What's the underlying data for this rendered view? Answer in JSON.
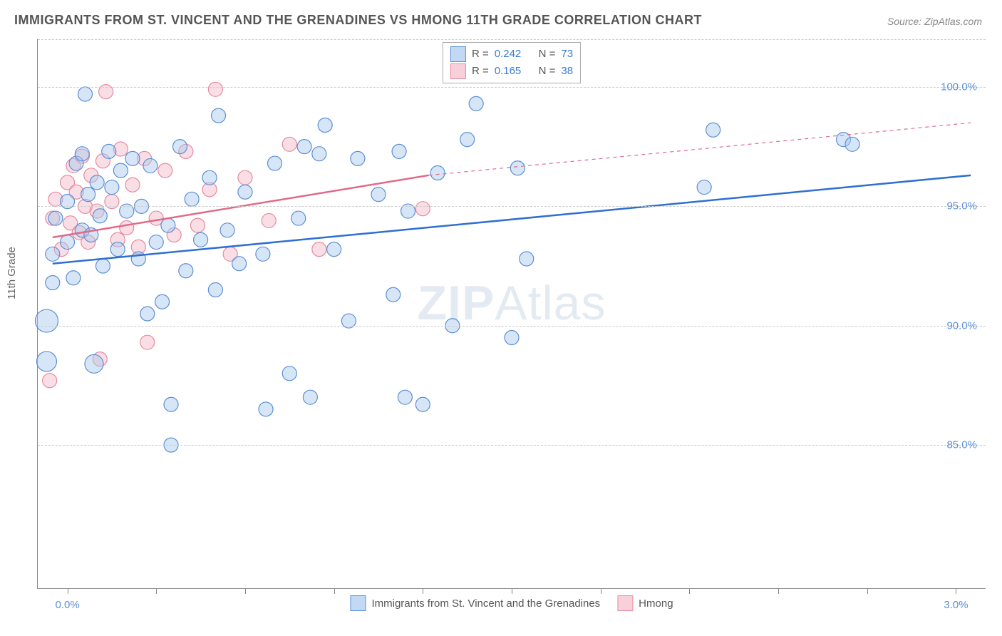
{
  "title": "IMMIGRANTS FROM ST. VINCENT AND THE GRENADINES VS HMONG 11TH GRADE CORRELATION CHART",
  "source": "Source: ZipAtlas.com",
  "y_axis_label": "11th Grade",
  "watermark_a": "ZIP",
  "watermark_b": "Atlas",
  "chart": {
    "type": "scatter",
    "xlim": [
      -0.1,
      3.1
    ],
    "ylim": [
      79.0,
      102.0
    ],
    "x_ticks": [
      0.0,
      0.3,
      0.6,
      0.9,
      1.2,
      1.5,
      1.8,
      2.1,
      2.4,
      2.7,
      3.0
    ],
    "x_tick_labels": {
      "0": "0.0%",
      "10": "3.0%"
    },
    "y_gridlines": [
      85.0,
      90.0,
      95.0,
      100.0,
      102.0
    ],
    "y_tick_labels": {
      "85": "85.0%",
      "90": "90.0%",
      "95": "95.0%",
      "100": "100.0%"
    },
    "background_color": "#ffffff",
    "grid_color": "#cccccc",
    "axis_color": "#888888",
    "marker_radius": 10,
    "marker_opacity": 0.45,
    "line_width": 2.5,
    "series": [
      {
        "name": "Immigrants from St. Vincent and the Grenadines",
        "color_fill": "#a6c8ec",
        "color_stroke": "#5b8fd6",
        "line_color": "#2e6fd1",
        "R": "0.242",
        "N": "73",
        "trend": {
          "x1": -0.05,
          "y1": 92.6,
          "x2": 3.05,
          "y2": 96.3
        },
        "points": [
          {
            "x": -0.07,
            "y": 90.2,
            "r": 16
          },
          {
            "x": -0.07,
            "y": 88.5,
            "r": 14
          },
          {
            "x": -0.05,
            "y": 93.0
          },
          {
            "x": -0.05,
            "y": 91.8
          },
          {
            "x": -0.04,
            "y": 94.5
          },
          {
            "x": 0.0,
            "y": 95.2
          },
          {
            "x": 0.0,
            "y": 93.5
          },
          {
            "x": 0.02,
            "y": 92.0
          },
          {
            "x": 0.03,
            "y": 96.8
          },
          {
            "x": 0.05,
            "y": 94.0
          },
          {
            "x": 0.05,
            "y": 97.2
          },
          {
            "x": 0.06,
            "y": 99.7
          },
          {
            "x": 0.07,
            "y": 95.5
          },
          {
            "x": 0.08,
            "y": 93.8
          },
          {
            "x": 0.09,
            "y": 88.4,
            "r": 13
          },
          {
            "x": 0.1,
            "y": 96.0
          },
          {
            "x": 0.11,
            "y": 94.6
          },
          {
            "x": 0.12,
            "y": 92.5
          },
          {
            "x": 0.14,
            "y": 97.3
          },
          {
            "x": 0.15,
            "y": 95.8
          },
          {
            "x": 0.17,
            "y": 93.2
          },
          {
            "x": 0.18,
            "y": 96.5
          },
          {
            "x": 0.2,
            "y": 94.8
          },
          {
            "x": 0.22,
            "y": 97.0
          },
          {
            "x": 0.24,
            "y": 92.8
          },
          {
            "x": 0.25,
            "y": 95.0
          },
          {
            "x": 0.27,
            "y": 90.5
          },
          {
            "x": 0.28,
            "y": 96.7
          },
          {
            "x": 0.3,
            "y": 93.5
          },
          {
            "x": 0.32,
            "y": 91.0
          },
          {
            "x": 0.34,
            "y": 94.2
          },
          {
            "x": 0.35,
            "y": 86.7
          },
          {
            "x": 0.35,
            "y": 85.0
          },
          {
            "x": 0.38,
            "y": 97.5
          },
          {
            "x": 0.4,
            "y": 92.3
          },
          {
            "x": 0.42,
            "y": 95.3
          },
          {
            "x": 0.45,
            "y": 93.6
          },
          {
            "x": 0.48,
            "y": 96.2
          },
          {
            "x": 0.5,
            "y": 91.5
          },
          {
            "x": 0.51,
            "y": 98.8
          },
          {
            "x": 0.54,
            "y": 94.0
          },
          {
            "x": 0.58,
            "y": 92.6
          },
          {
            "x": 0.6,
            "y": 95.6
          },
          {
            "x": 0.66,
            "y": 93.0
          },
          {
            "x": 0.67,
            "y": 86.5
          },
          {
            "x": 0.7,
            "y": 96.8
          },
          {
            "x": 0.75,
            "y": 88.0
          },
          {
            "x": 0.78,
            "y": 94.5
          },
          {
            "x": 0.8,
            "y": 97.5
          },
          {
            "x": 0.82,
            "y": 87.0
          },
          {
            "x": 0.85,
            "y": 97.2
          },
          {
            "x": 0.87,
            "y": 98.4
          },
          {
            "x": 0.9,
            "y": 93.2
          },
          {
            "x": 0.95,
            "y": 90.2
          },
          {
            "x": 0.98,
            "y": 97.0
          },
          {
            "x": 1.05,
            "y": 95.5
          },
          {
            "x": 1.1,
            "y": 91.3
          },
          {
            "x": 1.12,
            "y": 97.3
          },
          {
            "x": 1.14,
            "y": 87.0
          },
          {
            "x": 1.15,
            "y": 94.8
          },
          {
            "x": 1.2,
            "y": 86.7
          },
          {
            "x": 1.25,
            "y": 96.4
          },
          {
            "x": 1.3,
            "y": 90.0
          },
          {
            "x": 1.35,
            "y": 97.8
          },
          {
            "x": 1.38,
            "y": 99.3
          },
          {
            "x": 1.5,
            "y": 89.5
          },
          {
            "x": 1.52,
            "y": 96.6
          },
          {
            "x": 1.55,
            "y": 92.8
          },
          {
            "x": 2.15,
            "y": 95.8
          },
          {
            "x": 2.18,
            "y": 98.2
          },
          {
            "x": 2.62,
            "y": 97.8
          },
          {
            "x": 2.65,
            "y": 97.6
          }
        ]
      },
      {
        "name": "Hmong",
        "color_fill": "#f2b8c6",
        "color_stroke": "#e68aa0",
        "line_color": "#e06a88",
        "R": "0.165",
        "N": "38",
        "trend": {
          "x1": -0.05,
          "y1": 93.7,
          "x2": 1.22,
          "y2": 96.3
        },
        "trend_ext": {
          "x1": 1.22,
          "y1": 96.3,
          "x2": 3.05,
          "y2": 98.5
        },
        "points": [
          {
            "x": -0.06,
            "y": 87.7
          },
          {
            "x": -0.05,
            "y": 94.5
          },
          {
            "x": -0.04,
            "y": 95.3
          },
          {
            "x": -0.02,
            "y": 93.2
          },
          {
            "x": 0.0,
            "y": 96.0
          },
          {
            "x": 0.01,
            "y": 94.3
          },
          {
            "x": 0.02,
            "y": 96.7
          },
          {
            "x": 0.03,
            "y": 95.6
          },
          {
            "x": 0.04,
            "y": 93.9
          },
          {
            "x": 0.05,
            "y": 97.1
          },
          {
            "x": 0.06,
            "y": 95.0
          },
          {
            "x": 0.07,
            "y": 93.5
          },
          {
            "x": 0.08,
            "y": 96.3
          },
          {
            "x": 0.1,
            "y": 94.8
          },
          {
            "x": 0.11,
            "y": 88.6
          },
          {
            "x": 0.12,
            "y": 96.9
          },
          {
            "x": 0.13,
            "y": 99.8
          },
          {
            "x": 0.15,
            "y": 95.2
          },
          {
            "x": 0.17,
            "y": 93.6
          },
          {
            "x": 0.18,
            "y": 97.4
          },
          {
            "x": 0.2,
            "y": 94.1
          },
          {
            "x": 0.22,
            "y": 95.9
          },
          {
            "x": 0.24,
            "y": 93.3
          },
          {
            "x": 0.26,
            "y": 97.0
          },
          {
            "x": 0.27,
            "y": 89.3
          },
          {
            "x": 0.3,
            "y": 94.5
          },
          {
            "x": 0.33,
            "y": 96.5
          },
          {
            "x": 0.36,
            "y": 93.8
          },
          {
            "x": 0.4,
            "y": 97.3
          },
          {
            "x": 0.44,
            "y": 94.2
          },
          {
            "x": 0.48,
            "y": 95.7
          },
          {
            "x": 0.5,
            "y": 99.9
          },
          {
            "x": 0.55,
            "y": 93.0
          },
          {
            "x": 0.6,
            "y": 96.2
          },
          {
            "x": 0.68,
            "y": 94.4
          },
          {
            "x": 0.75,
            "y": 97.6
          },
          {
            "x": 0.85,
            "y": 93.2
          },
          {
            "x": 1.2,
            "y": 94.9
          }
        ]
      }
    ]
  },
  "legend_top": {
    "r_label": "R =",
    "n_label": "N ="
  },
  "legend_bottom": {
    "series1": "Immigrants from St. Vincent and the Grenadines",
    "series2": "Hmong"
  }
}
